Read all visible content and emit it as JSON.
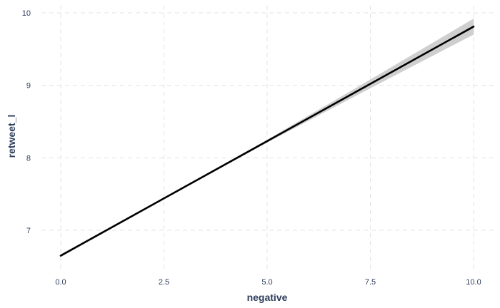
{
  "chart_data": {
    "type": "line",
    "title": "",
    "xlabel": "negative",
    "ylabel": "retweet_l",
    "xlim": [
      0,
      10
    ],
    "ylim": [
      6.5,
      10.1
    ],
    "x_ticks": [
      0,
      2.5,
      5,
      7.5,
      10
    ],
    "x_tick_labels": [
      "0.0",
      "2.5",
      "5.0",
      "7.5",
      "10.0"
    ],
    "y_ticks": [
      7,
      8,
      9,
      10
    ],
    "y_tick_labels": [
      "7",
      "8",
      "9",
      "10"
    ],
    "grid": true,
    "series": [
      {
        "x": [
          0,
          2.5,
          5,
          7.5,
          10
        ],
        "y": [
          6.65,
          7.44,
          8.23,
          9.02,
          9.81
        ],
        "ci_lower": [
          6.63,
          7.43,
          8.21,
          8.96,
          9.7
        ],
        "ci_upper": [
          6.67,
          7.45,
          8.25,
          9.08,
          9.92
        ],
        "color": "#000000",
        "band_color": "#cfcfcf"
      }
    ]
  }
}
